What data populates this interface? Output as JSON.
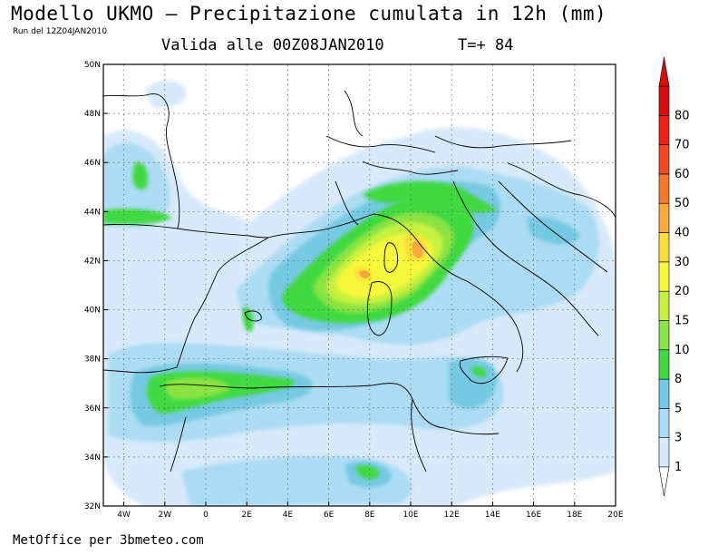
{
  "header": {
    "title": "Modello UKMO — Precipitazione cumulata in 12h (mm)",
    "run": "Run del 12Z04JAN2010",
    "valid": "Valida alle 00Z08JAN2010",
    "timestep": "T=+ 84"
  },
  "footer": {
    "credit": "MetOffice per 3bmeteo.com"
  },
  "map": {
    "lon_range": [
      -5,
      20
    ],
    "lat_range": [
      32,
      50
    ],
    "lon_ticks": [
      {
        "value": -4,
        "label": "4W"
      },
      {
        "value": -2,
        "label": "2W"
      },
      {
        "value": 0,
        "label": "0"
      },
      {
        "value": 2,
        "label": "2E"
      },
      {
        "value": 4,
        "label": "4E"
      },
      {
        "value": 6,
        "label": "6E"
      },
      {
        "value": 8,
        "label": "8E"
      },
      {
        "value": 10,
        "label": "10E"
      },
      {
        "value": 12,
        "label": "12E"
      },
      {
        "value": 14,
        "label": "14E"
      },
      {
        "value": 16,
        "label": "16E"
      },
      {
        "value": 18,
        "label": "18E"
      },
      {
        "value": 20,
        "label": "20E"
      }
    ],
    "lat_ticks": [
      {
        "value": 32,
        "label": "32N"
      },
      {
        "value": 34,
        "label": "34N"
      },
      {
        "value": 36,
        "label": "36N"
      },
      {
        "value": 38,
        "label": "38N"
      },
      {
        "value": 40,
        "label": "40N"
      },
      {
        "value": 42,
        "label": "42N"
      },
      {
        "value": 44,
        "label": "44N"
      },
      {
        "value": 46,
        "label": "46N"
      },
      {
        "value": 48,
        "label": "48N"
      },
      {
        "value": 50,
        "label": "50N"
      }
    ],
    "grid": true,
    "grid_style": "dotted"
  },
  "legend": {
    "levels": [
      {
        "label": "1",
        "color": "#d7e9fb"
      },
      {
        "label": "3",
        "color": "#acdcf3"
      },
      {
        "label": "5",
        "color": "#75c9e2"
      },
      {
        "label": "8",
        "color": "#41d941"
      },
      {
        "label": "10",
        "color": "#8ae342"
      },
      {
        "label": "15",
        "color": "#c6f13c"
      },
      {
        "label": "20",
        "color": "#f7f73a"
      },
      {
        "label": "30",
        "color": "#f9dd3a"
      },
      {
        "label": "40",
        "color": "#f7a93a"
      },
      {
        "label": "50",
        "color": "#f5782f"
      },
      {
        "label": "60",
        "color": "#f14a22"
      },
      {
        "label": "70",
        "color": "#ee2115"
      },
      {
        "label": "80",
        "color": "#d80e0e"
      }
    ]
  }
}
